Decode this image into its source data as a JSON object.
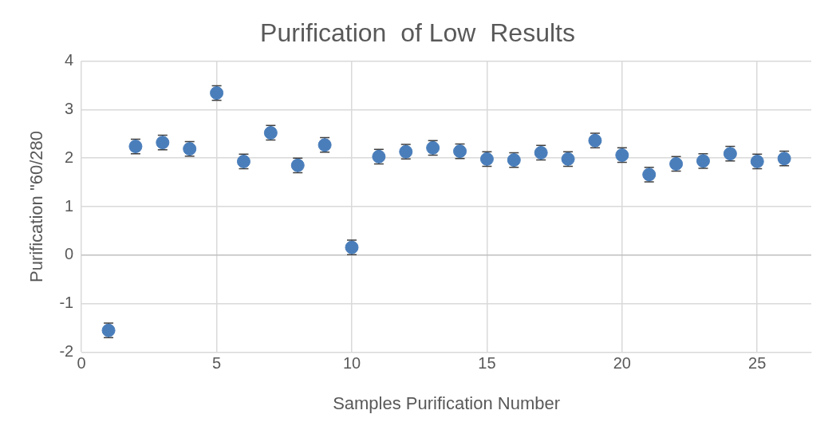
{
  "chart_data": {
    "type": "scatter",
    "title": "Purification  of Low  Results",
    "xlabel": "Samples Purification Number",
    "ylabel": "Purification \"60/280",
    "x": [
      1,
      2,
      3,
      4,
      5,
      6,
      7,
      8,
      9,
      10,
      11,
      12,
      13,
      14,
      15,
      16,
      17,
      18,
      19,
      20,
      21,
      22,
      23,
      24,
      25,
      26
    ],
    "series": [
      {
        "color": "#4a7ebb",
        "values": [
          -1.55,
          2.24,
          2.32,
          2.19,
          3.34,
          1.93,
          2.52,
          1.85,
          2.27,
          0.16,
          2.03,
          2.13,
          2.21,
          2.14,
          1.98,
          1.96,
          2.11,
          1.98,
          2.36,
          2.06,
          1.66,
          1.88,
          1.94,
          2.09,
          1.93,
          1.99
        ],
        "errors": [
          0.15,
          0.15,
          0.15,
          0.15,
          0.15,
          0.15,
          0.15,
          0.15,
          0.15,
          0.15,
          0.15,
          0.15,
          0.15,
          0.15,
          0.15,
          0.15,
          0.15,
          0.15,
          0.15,
          0.15,
          0.15,
          0.15,
          0.15,
          0.15,
          0.15,
          0.15
        ]
      }
    ],
    "xlim": [
      0,
      27
    ],
    "xticks": [
      0,
      5,
      10,
      15,
      20,
      25
    ],
    "ylim": [
      -2,
      4
    ],
    "yticks": [
      -2,
      -1,
      0,
      1,
      2,
      3,
      4
    ],
    "grid": true,
    "marker": "circle",
    "legend": false
  }
}
